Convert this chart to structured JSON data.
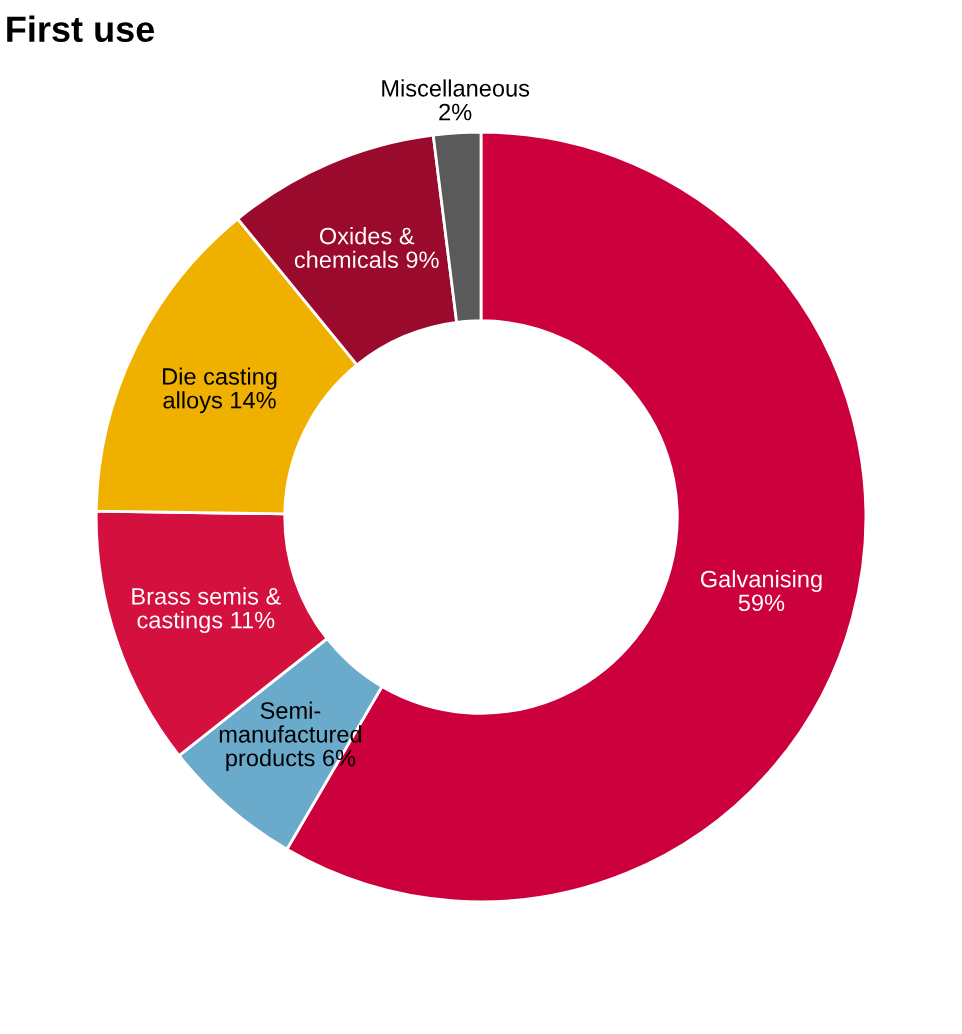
{
  "chart_data": {
    "type": "donut",
    "title": "First use",
    "categories": [
      "Galvanising",
      "Semi-\nmanufactured\nproducts",
      "Brass semis &\ncastings",
      "Die casting\nalloys",
      "Oxides &\nchemicals",
      "Miscellaneous"
    ],
    "values": [
      59,
      6,
      11,
      14,
      9,
      2
    ],
    "colors": [
      "#cc003c",
      "#6aaacb",
      "#d4103f",
      "#f0b000",
      "#990a2c",
      "#5a5a5a"
    ],
    "value_labels": [
      "59%",
      "6%",
      "11%",
      "14%",
      "9%",
      "2%"
    ],
    "legend": false
  }
}
